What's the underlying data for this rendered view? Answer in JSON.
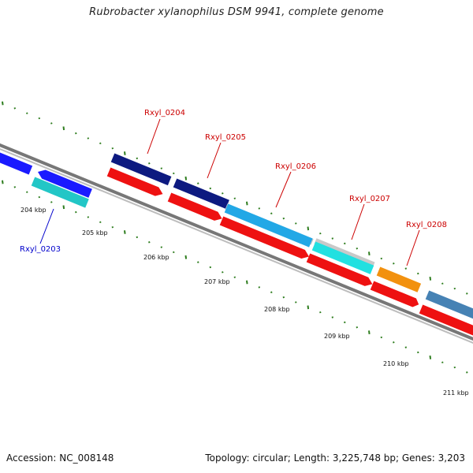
{
  "title": "Rubrobacter xylanophilus DSM 9941, complete genome",
  "footer": {
    "accession": "Accession: NC_008148",
    "summary": "Topology: circular; Length: 3,225,748 bp; Genes: 3,203"
  },
  "colors": {
    "backbone": "#8a8a8a",
    "tick": "#2e7d1e",
    "label_red": "#cc0000",
    "label_blue": "#0000cc"
  },
  "kbp_labels": [
    {
      "text": "204 kbp"
    },
    {
      "text": "205 kbp"
    },
    {
      "text": "206 kbp"
    },
    {
      "text": "207 kbp"
    },
    {
      "text": "208 kbp"
    },
    {
      "text": "209 kbp"
    },
    {
      "text": "210 kbp"
    },
    {
      "text": "211 kbp"
    }
  ],
  "gene_labels": [
    {
      "text": "Rxyl_0203",
      "color": "#0000cc"
    },
    {
      "text": "Rxyl_0204",
      "color": "#cc0000"
    },
    {
      "text": "Rxyl_0205",
      "color": "#cc0000"
    },
    {
      "text": "Rxyl_0206",
      "color": "#cc0000"
    },
    {
      "text": "Rxyl_0207",
      "color": "#cc0000"
    },
    {
      "text": "Rxyl_0208",
      "color": "#cc0000"
    }
  ]
}
